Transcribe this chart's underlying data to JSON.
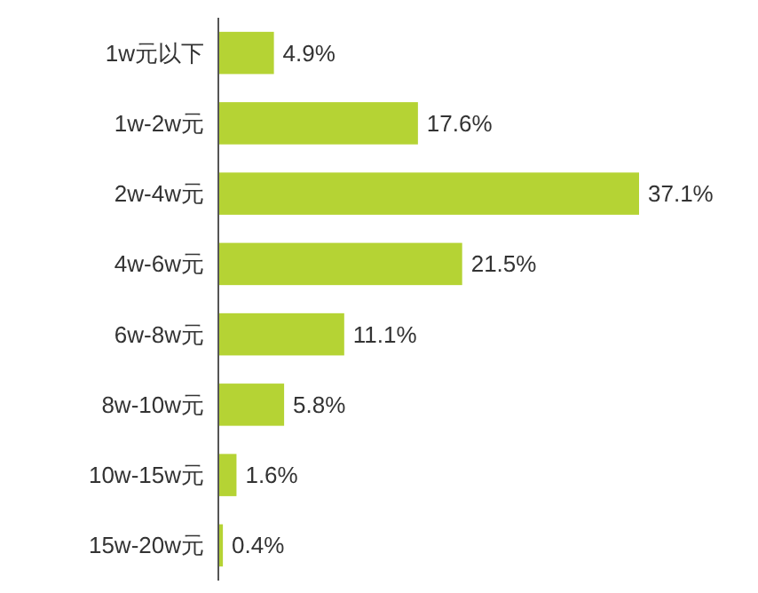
{
  "chart_data": {
    "type": "bar",
    "orientation": "horizontal",
    "categories": [
      "1w元以下",
      "1w-2w元",
      "2w-4w元",
      "4w-6w元",
      "6w-8w元",
      "8w-10w元",
      "10w-15w元",
      "15w-20w元"
    ],
    "values": [
      4.9,
      17.6,
      37.1,
      21.5,
      11.1,
      5.8,
      1.6,
      0.4
    ],
    "value_labels": [
      "4.9%",
      "17.6%",
      "37.1%",
      "21.5%",
      "11.1%",
      "5.8%",
      "1.6%",
      "0.4%"
    ],
    "color": "#b5d334"
  }
}
